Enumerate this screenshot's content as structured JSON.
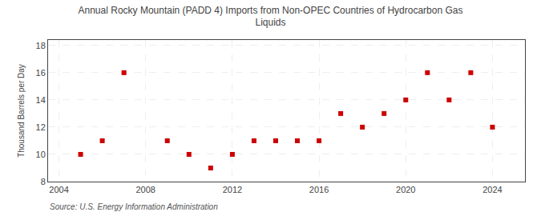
{
  "chart_data": {
    "type": "scatter",
    "title": "Annual Rocky Mountain (PADD 4) Imports from Non-OPEC Countries of Hydrocarbon Gas\nLiquids",
    "ylabel": "Thousand Barrels per Day",
    "annotations": [
      "Source: U.S. Energy Information Administration"
    ],
    "x": [
      2005,
      2006,
      2007,
      2009,
      2010,
      2011,
      2012,
      2013,
      2014,
      2015,
      2016,
      2017,
      2018,
      2019,
      2020,
      2021,
      2022,
      2023,
      2024
    ],
    "values": [
      10,
      11,
      16,
      11,
      10,
      9,
      10,
      11,
      11,
      11,
      11,
      13,
      12,
      13,
      14,
      16,
      14,
      16,
      12
    ],
    "color": "#cc0000",
    "marker": "square",
    "xlim": [
      2003.5,
      2025.5
    ],
    "ylim": [
      8,
      18.4
    ],
    "xticks": [
      2004,
      2008,
      2012,
      2016,
      2020,
      2024
    ],
    "yticks": [
      8,
      10,
      12,
      14,
      16,
      18
    ],
    "grid": true
  }
}
